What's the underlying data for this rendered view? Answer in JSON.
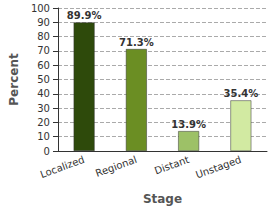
{
  "chart_data": {
    "type": "bar",
    "x_label": "Stage",
    "y_label": "Percent",
    "categories": [
      "Localized",
      "Regional",
      "Distant",
      "Unstaged"
    ],
    "values": [
      89.9,
      71.3,
      13.9,
      35.4
    ],
    "value_labels": [
      "89.9%",
      "71.3%",
      "13.9%",
      "35.4%"
    ],
    "colors": [
      "#2e4a0b",
      "#6b8e23",
      "#9dc167",
      "#d2eaa2"
    ],
    "ylim": [
      0,
      100
    ],
    "yticks": [
      0,
      10,
      20,
      30,
      40,
      50,
      60,
      70,
      80,
      90,
      100
    ],
    "grid": true,
    "data_labels": true
  }
}
